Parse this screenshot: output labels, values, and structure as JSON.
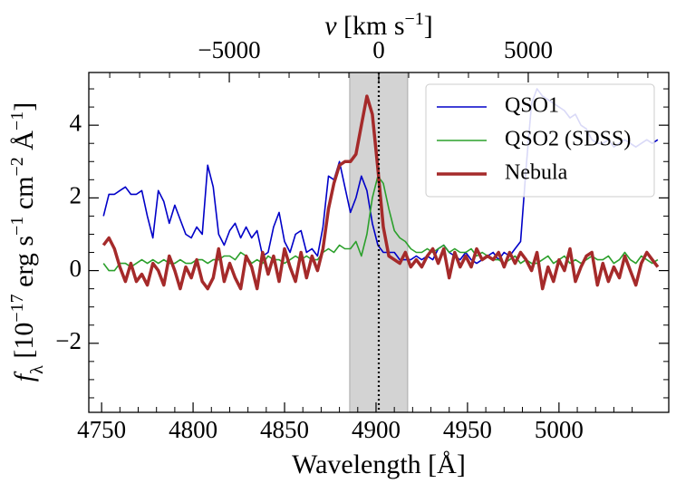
{
  "chart_data": {
    "type": "line",
    "xlabel": "Wavelength [Å]",
    "ylabel": [
      {
        "text": "f"
      },
      {
        "sub": "λ"
      },
      {
        "text": " [10"
      },
      {
        "sup": "−17"
      },
      {
        "text": " erg s"
      },
      {
        "sup": "−1"
      },
      {
        "text": " cm"
      },
      {
        "sup": "−2"
      },
      {
        "text": " Å"
      },
      {
        "sup": "−1"
      },
      {
        "text": "]"
      }
    ],
    "x2label": [
      {
        "text": "v"
      },
      {
        "text": " [km s"
      },
      {
        "sup": "−1"
      },
      {
        "text": "]"
      }
    ],
    "xlim": [
      4743,
      5060
    ],
    "xticks": [
      4750,
      4800,
      4850,
      4900,
      4950,
      5000
    ],
    "x2lim": [
      -9700,
      9700
    ],
    "x2ticks": [
      {
        "value": -5000,
        "label": "−5000"
      },
      0,
      5000
    ],
    "ylim": [
      -3.9,
      5.45
    ],
    "yticks": [
      {
        "value": -2,
        "label": "−2"
      },
      0,
      2,
      4
    ],
    "shaded_xrange": [
      4885.6,
      4917.3
    ],
    "shade_color": "#d3d3d3",
    "reference_line_x": 4901.5,
    "legend": "upper right",
    "x": [
      4751,
      4754,
      4757,
      4760,
      4763,
      4766,
      4769,
      4772,
      4775,
      4778,
      4781,
      4784,
      4787,
      4790,
      4793,
      4796,
      4799,
      4802,
      4805,
      4808,
      4811,
      4814,
      4817,
      4820,
      4823,
      4826,
      4829,
      4832,
      4835,
      4838,
      4841,
      4844,
      4847,
      4850,
      4853,
      4856,
      4859,
      4862,
      4865,
      4868,
      4871,
      4874,
      4877,
      4880,
      4883,
      4886,
      4889,
      4892,
      4895,
      4898,
      4901,
      4904,
      4907,
      4910,
      4913,
      4916,
      4919,
      4922,
      4925,
      4928,
      4931,
      4934,
      4937,
      4940,
      4943,
      4946,
      4949,
      4952,
      4955,
      4958,
      4961,
      4964,
      4967,
      4970,
      4973,
      4976,
      4979,
      4982,
      4985,
      4988,
      4991,
      4994,
      4997,
      5000,
      5003,
      5006,
      5009,
      5012,
      5015,
      5018,
      5021,
      5024,
      5027,
      5030,
      5033,
      5036,
      5039,
      5042,
      5045,
      5048,
      5051,
      5054
    ],
    "series": [
      {
        "name": "QSO1",
        "color": "#0000c8",
        "width": 1.6,
        "values": [
          1.5,
          2.1,
          2.1,
          2.2,
          2.3,
          2.1,
          2.1,
          2.2,
          1.5,
          0.9,
          2.2,
          1.9,
          1.3,
          1.8,
          1.4,
          1.0,
          0.9,
          1.2,
          1.0,
          2.9,
          2.3,
          1.0,
          0.7,
          1.1,
          1.3,
          0.9,
          1.2,
          0.9,
          1.1,
          0.4,
          0.5,
          1.2,
          1.6,
          0.8,
          0.5,
          1.0,
          1.1,
          0.5,
          0.6,
          0.4,
          1.2,
          2.6,
          2.5,
          3.0,
          2.3,
          1.6,
          2.0,
          2.6,
          2.2,
          1.3,
          0.7,
          0.5,
          0.5,
          0.5,
          0.3,
          0.3,
          0.3,
          0.4,
          0.3,
          0.4,
          0.3,
          0.6,
          0.7,
          0.5,
          0.4,
          0.3,
          0.5,
          0.3,
          0.2,
          0.3,
          0.4,
          0.5,
          0.3,
          0.5,
          0.4,
          0.6,
          0.8,
          2.8,
          4.6,
          5.0,
          4.8,
          4.7,
          4.6,
          4.5,
          4.4,
          4.2,
          4.3,
          4.0,
          3.9,
          3.6,
          3.5,
          3.5,
          3.6,
          3.4,
          3.5,
          3.6,
          3.5,
          3.4,
          3.5,
          3.6,
          3.5,
          3.6
        ]
      },
      {
        "name": "QSO2 (SDSS)",
        "color": "#2ca02c",
        "width": 1.6,
        "values": [
          0.2,
          0.0,
          0.0,
          0.2,
          0.2,
          0.1,
          0.2,
          0.3,
          0.2,
          0.3,
          0.2,
          0.3,
          0.2,
          0.2,
          0.3,
          0.2,
          0.2,
          0.3,
          0.3,
          0.2,
          0.3,
          0.3,
          0.4,
          0.4,
          0.3,
          0.5,
          0.4,
          0.2,
          0.3,
          0.2,
          0.4,
          0.3,
          0.3,
          0.2,
          0.3,
          0.4,
          0.3,
          0.4,
          0.3,
          0.3,
          0.5,
          0.6,
          0.5,
          0.7,
          0.6,
          0.6,
          0.8,
          0.4,
          1.0,
          2.0,
          2.6,
          2.4,
          1.7,
          1.1,
          0.9,
          0.8,
          0.6,
          0.5,
          0.5,
          0.6,
          0.5,
          0.6,
          0.7,
          0.5,
          0.6,
          0.5,
          0.5,
          0.6,
          0.4,
          0.5,
          0.4,
          0.3,
          0.3,
          0.2,
          0.3,
          0.4,
          0.2,
          0.3,
          0.2,
          0.2,
          0.3,
          0.4,
          0.2,
          0.3,
          0.4,
          0.2,
          0.3,
          0.2,
          0.3,
          0.4,
          0.3,
          0.3,
          0.4,
          0.2,
          0.3,
          0.5,
          0.3,
          0.2,
          0.4,
          0.3,
          0.2,
          0.3
        ]
      },
      {
        "name": "Nebula",
        "color": "#a52a2a",
        "width": 3.5,
        "values": [
          0.7,
          0.9,
          0.6,
          0.1,
          -0.3,
          0.2,
          -0.3,
          -0.1,
          -0.4,
          0.2,
          0.0,
          -0.4,
          0.4,
          0.0,
          -0.5,
          0.1,
          -0.2,
          0.3,
          -0.3,
          -0.5,
          -0.2,
          0.6,
          -0.3,
          0.2,
          -0.2,
          -0.5,
          0.4,
          0.1,
          -0.5,
          0.5,
          -0.1,
          0.4,
          -0.3,
          0.6,
          0.1,
          -0.3,
          0.5,
          -0.2,
          0.4,
          0.0,
          0.6,
          1.7,
          2.4,
          2.9,
          3.0,
          3.0,
          3.2,
          4.0,
          4.8,
          4.3,
          2.8,
          1.2,
          0.4,
          0.3,
          0.2,
          0.5,
          0.1,
          0.3,
          0.1,
          0.4,
          0.6,
          0.2,
          0.6,
          -0.2,
          0.5,
          0.1,
          0.4,
          0.1,
          0.6,
          0.3,
          0.4,
          0.3,
          0.5,
          0.1,
          0.5,
          0.2,
          0.5,
          0.3,
          0.0,
          0.5,
          -0.5,
          0.1,
          -0.3,
          0.3,
          0.0,
          0.6,
          -0.3,
          0.1,
          0.4,
          0.5,
          -0.4,
          0.2,
          -0.3,
          0.1,
          -0.2,
          0.4,
          0.0,
          -0.4,
          0.2,
          0.5,
          0.3,
          0.1
        ]
      }
    ]
  }
}
